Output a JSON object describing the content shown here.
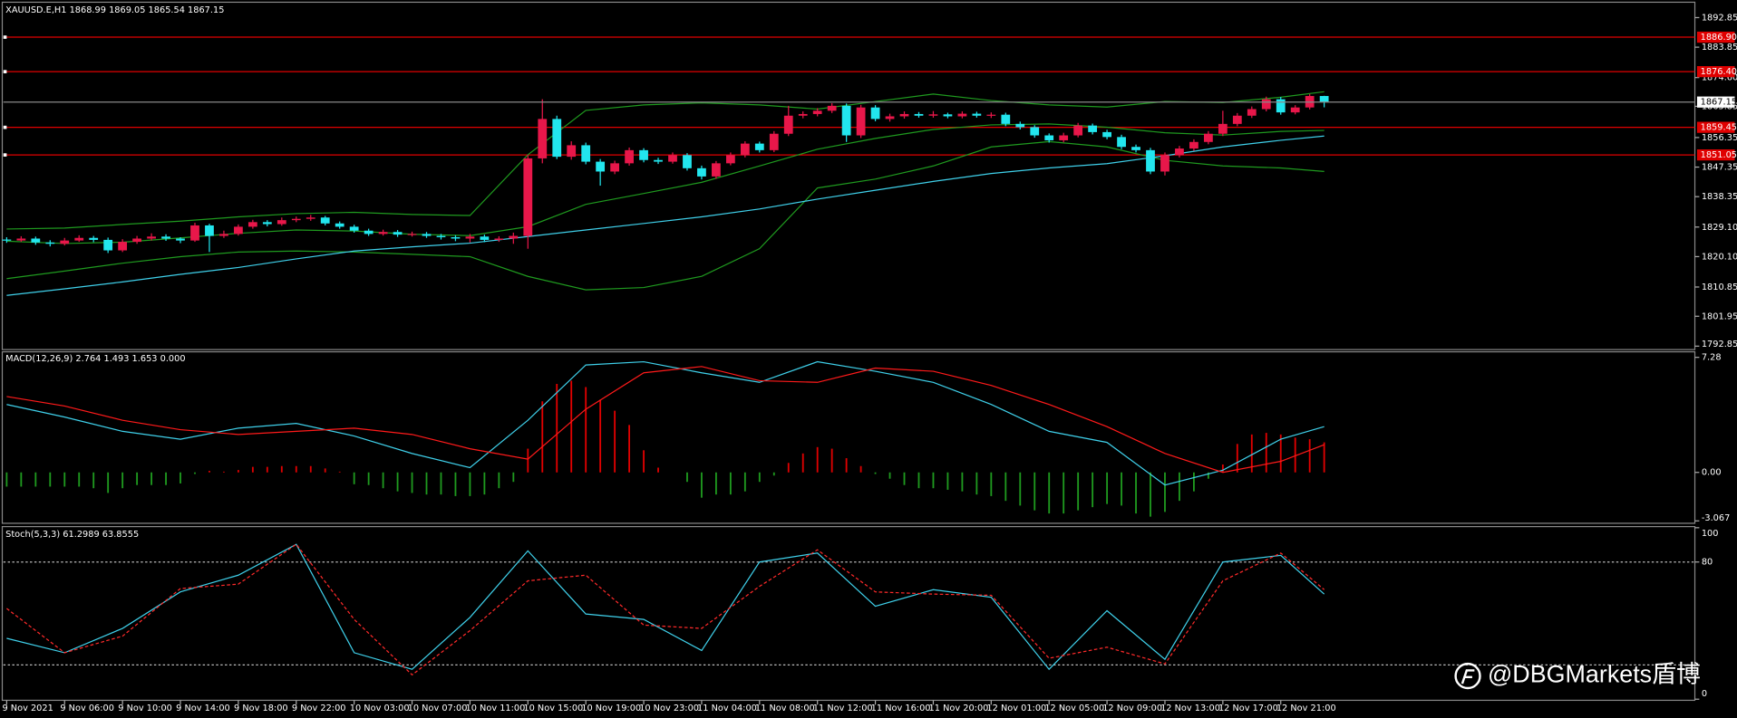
{
  "chart_data": [
    {
      "type": "candlestick",
      "title": "XAUUSD.E,H1  1868.99 1869.05 1865.54 1867.15",
      "categories": [
        "9 Nov 2021",
        null,
        null,
        null,
        "9 Nov 06:00",
        null,
        null,
        null,
        "9 Nov 10:00",
        null,
        null,
        null,
        "9 Nov 14:00",
        null,
        null,
        null,
        "9 Nov 18:00",
        null,
        null,
        null,
        "9 Nov 22:00",
        null,
        null,
        null,
        "10 Nov 03:00",
        null,
        null,
        null,
        "10 Nov 07:00",
        null,
        null,
        null,
        "10 Nov 11:00",
        null,
        null,
        null,
        "10 Nov 15:00",
        null,
        null,
        null,
        "10 Nov 19:00",
        null,
        null,
        null,
        "10 Nov 23:00",
        null,
        null,
        null,
        "11 Nov 04:00",
        null,
        null,
        null,
        "11 Nov 08:00",
        null,
        null,
        null,
        "11 Nov 12:00",
        null,
        null,
        null,
        "11 Nov 16:00",
        null,
        null,
        null,
        "11 Nov 20:00",
        null,
        null,
        null,
        "12 Nov 01:00",
        null,
        null,
        null,
        "12 Nov 05:00",
        null,
        null,
        null,
        "12 Nov 09:00",
        null,
        null,
        null,
        "12 Nov 13:00",
        null,
        null,
        null,
        "12 Nov 17:00",
        null,
        null,
        null,
        "12 Nov 21:00",
        null,
        null,
        null
      ],
      "ohlc": [
        [
          1825.3,
          1826.0,
          1824.3,
          1825.0
        ],
        [
          1825.0,
          1826.3,
          1824.6,
          1825.6
        ],
        [
          1825.6,
          1826.2,
          1823.7,
          1824.4
        ],
        [
          1824.4,
          1825.1,
          1823.2,
          1824.0
        ],
        [
          1824.0,
          1825.8,
          1823.5,
          1825.0
        ],
        [
          1825.0,
          1826.6,
          1824.6,
          1825.8
        ],
        [
          1825.8,
          1826.4,
          1824.5,
          1825.2
        ],
        [
          1825.2,
          1825.9,
          1821.2,
          1822.0
        ],
        [
          1822.0,
          1825.4,
          1821.5,
          1824.6
        ],
        [
          1824.6,
          1826.4,
          1824.0,
          1825.6
        ],
        [
          1825.6,
          1827.2,
          1825.0,
          1826.2
        ],
        [
          1826.2,
          1826.9,
          1824.9,
          1825.6
        ],
        [
          1825.6,
          1826.0,
          1824.2,
          1825.0
        ],
        [
          1825.0,
          1830.4,
          1824.6,
          1829.6
        ],
        [
          1829.6,
          1830.1,
          1821.5,
          1826.4
        ],
        [
          1826.4,
          1828.0,
          1825.8,
          1827.0
        ],
        [
          1827.0,
          1829.9,
          1826.5,
          1829.2
        ],
        [
          1829.2,
          1831.3,
          1828.6,
          1830.6
        ],
        [
          1830.6,
          1831.2,
          1829.3,
          1830.0
        ],
        [
          1830.0,
          1832.0,
          1829.5,
          1831.2
        ],
        [
          1831.2,
          1832.3,
          1830.6,
          1831.6
        ],
        [
          1831.6,
          1832.8,
          1831.0,
          1832.0
        ],
        [
          1832.0,
          1832.5,
          1829.6,
          1830.2
        ],
        [
          1830.2,
          1830.8,
          1828.6,
          1829.2
        ],
        [
          1829.2,
          1829.8,
          1827.4,
          1828.0
        ],
        [
          1828.0,
          1828.6,
          1826.4,
          1827.0
        ],
        [
          1827.0,
          1828.3,
          1826.5,
          1827.6
        ],
        [
          1827.6,
          1828.2,
          1826.1,
          1826.8
        ],
        [
          1826.8,
          1827.7,
          1826.2,
          1827.0
        ],
        [
          1827.0,
          1827.6,
          1825.8,
          1826.4
        ],
        [
          1826.4,
          1827.0,
          1825.3,
          1826.0
        ],
        [
          1826.0,
          1826.6,
          1824.8,
          1825.6
        ],
        [
          1825.6,
          1827.0,
          1824.4,
          1826.2
        ],
        [
          1826.2,
          1826.8,
          1824.5,
          1825.2
        ],
        [
          1825.2,
          1826.3,
          1824.6,
          1825.6
        ],
        [
          1825.6,
          1827.4,
          1824.0,
          1826.4
        ],
        [
          1826.4,
          1851.0,
          1822.5,
          1850.0
        ],
        [
          1850.0,
          1868.0,
          1848.5,
          1862.0
        ],
        [
          1862.0,
          1863.0,
          1849.8,
          1850.5
        ],
        [
          1850.5,
          1855.2,
          1849.6,
          1854.0
        ],
        [
          1854.0,
          1854.8,
          1848.2,
          1849.0
        ],
        [
          1849.0,
          1849.8,
          1841.7,
          1846.0
        ],
        [
          1846.0,
          1849.3,
          1845.2,
          1848.5
        ],
        [
          1848.5,
          1853.3,
          1847.8,
          1852.5
        ],
        [
          1852.5,
          1853.1,
          1848.8,
          1849.5
        ],
        [
          1849.5,
          1850.2,
          1848.3,
          1849.0
        ],
        [
          1849.0,
          1851.8,
          1848.4,
          1851.0
        ],
        [
          1851.0,
          1851.6,
          1846.3,
          1847.0
        ],
        [
          1847.0,
          1847.8,
          1843.6,
          1844.5
        ],
        [
          1844.5,
          1849.2,
          1843.8,
          1848.5
        ],
        [
          1848.5,
          1851.8,
          1847.9,
          1851.0
        ],
        [
          1851.0,
          1855.2,
          1850.3,
          1854.5
        ],
        [
          1854.5,
          1855.1,
          1851.8,
          1852.5
        ],
        [
          1852.5,
          1858.3,
          1851.9,
          1857.5
        ],
        [
          1857.5,
          1866.0,
          1856.8,
          1863.0
        ],
        [
          1863.0,
          1864.3,
          1862.2,
          1863.5
        ],
        [
          1863.5,
          1865.3,
          1862.8,
          1864.5
        ],
        [
          1864.5,
          1866.8,
          1863.8,
          1866.0
        ],
        [
          1866.0,
          1866.7,
          1855.0,
          1857.0
        ],
        [
          1857.0,
          1866.3,
          1856.2,
          1865.5
        ],
        [
          1865.5,
          1866.2,
          1861.3,
          1862.0
        ],
        [
          1862.0,
          1863.6,
          1861.2,
          1862.8
        ],
        [
          1862.8,
          1864.3,
          1862.1,
          1863.5
        ],
        [
          1863.5,
          1864.1,
          1862.4,
          1863.0
        ],
        [
          1863.0,
          1864.4,
          1862.4,
          1863.4
        ],
        [
          1863.4,
          1863.9,
          1862.2,
          1862.8
        ],
        [
          1862.8,
          1864.3,
          1862.2,
          1863.6
        ],
        [
          1863.6,
          1864.2,
          1862.4,
          1863.0
        ],
        [
          1863.0,
          1864.0,
          1862.3,
          1863.3
        ],
        [
          1863.3,
          1863.9,
          1859.8,
          1860.5
        ],
        [
          1860.5,
          1861.2,
          1858.8,
          1859.5
        ],
        [
          1859.5,
          1860.1,
          1856.3,
          1857.0
        ],
        [
          1857.0,
          1857.6,
          1854.8,
          1855.5
        ],
        [
          1855.5,
          1857.8,
          1854.9,
          1857.0
        ],
        [
          1857.0,
          1860.8,
          1856.4,
          1860.0
        ],
        [
          1860.0,
          1860.6,
          1857.3,
          1858.0
        ],
        [
          1858.0,
          1858.7,
          1855.8,
          1856.5
        ],
        [
          1856.5,
          1857.2,
          1852.8,
          1853.5
        ],
        [
          1853.5,
          1854.2,
          1851.8,
          1852.5
        ],
        [
          1852.5,
          1853.2,
          1845.2,
          1846.0
        ],
        [
          1846.0,
          1851.8,
          1844.8,
          1851.0
        ],
        [
          1851.0,
          1853.8,
          1850.3,
          1853.0
        ],
        [
          1853.0,
          1855.8,
          1852.3,
          1855.0
        ],
        [
          1855.0,
          1858.3,
          1854.3,
          1857.5
        ],
        [
          1857.5,
          1864.5,
          1856.8,
          1860.5
        ],
        [
          1860.5,
          1863.8,
          1859.8,
          1863.0
        ],
        [
          1863.0,
          1865.8,
          1862.3,
          1865.0
        ],
        [
          1865.0,
          1868.8,
          1864.3,
          1868.0
        ],
        [
          1868.0,
          1868.7,
          1863.3,
          1864.0
        ],
        [
          1864.0,
          1866.2,
          1863.4,
          1865.5
        ],
        [
          1865.5,
          1869.6,
          1864.9,
          1868.99
        ],
        [
          1868.99,
          1869.05,
          1865.54,
          1867.15
        ]
      ],
      "up_color": "#e8174a",
      "down_color": "#22e6ee",
      "ylim": [
        1791.8,
        1897.2
      ],
      "yticks": [
        1892.85,
        1883.85,
        {
          "value": 1874.6,
          "label": "1874.60"
        },
        1865.85,
        1856.35,
        1847.35,
        1838.35,
        {
          "value": 1829.1,
          "label": "1829.10"
        },
        {
          "value": 1820.1,
          "label": "1820.10"
        },
        1810.85,
        1801.95,
        1792.85
      ],
      "levels": [
        {
          "value": 1886.9,
          "label": "1886.90"
        },
        {
          "value": 1876.4,
          "label": "1876.40"
        },
        {
          "value": 1859.45,
          "label": "1859.45"
        },
        {
          "value": 1851.05,
          "label": "1851.05"
        }
      ],
      "level_color": "#e00000",
      "price_line": 1867.15,
      "x": [
        0,
        4,
        8,
        12,
        16,
        20,
        24,
        28,
        32,
        36,
        40,
        44,
        48,
        52,
        56,
        60,
        64,
        68,
        72,
        76,
        80,
        84,
        88,
        91
      ],
      "lines": [
        {
          "color": "#1f9a1f",
          "values": [
            1828.5,
            1828.8,
            1829.9,
            1830.9,
            1832.2,
            1833.2,
            1833.6,
            1832.9,
            1832.6,
            1851.1,
            1864.6,
            1866.3,
            1866.9,
            1866.3,
            1865.0,
            1867.3,
            1869.6,
            1867.6,
            1866.3,
            1865.6,
            1867.3,
            1867.0,
            1868.6,
            1870.3
          ]
        },
        {
          "color": "#1f9a1f",
          "values": [
            1824.8,
            1824.1,
            1824.5,
            1825.8,
            1827.2,
            1828.2,
            1827.9,
            1826.9,
            1826.5,
            1829.2,
            1836.0,
            1839.3,
            1842.7,
            1847.7,
            1852.8,
            1856.1,
            1858.8,
            1860.2,
            1860.5,
            1859.5,
            1857.8,
            1857.1,
            1858.2,
            1858.5
          ]
        },
        {
          "color": "#1f9a1f",
          "values": [
            1813.4,
            1815.7,
            1818.1,
            1820.1,
            1821.5,
            1821.8,
            1821.5,
            1820.8,
            1820.1,
            1814.1,
            1810.0,
            1810.7,
            1814.1,
            1822.5,
            1841.0,
            1843.7,
            1847.7,
            1853.5,
            1855.1,
            1853.5,
            1849.4,
            1847.7,
            1847.1,
            1846.0
          ]
        },
        {
          "color": "#3fd0ea",
          "values": [
            1808.3,
            1810.3,
            1812.4,
            1814.7,
            1816.8,
            1819.4,
            1821.8,
            1823.1,
            1824.2,
            1826.2,
            1828.2,
            1830.2,
            1832.2,
            1834.6,
            1837.6,
            1840.3,
            1843.0,
            1845.4,
            1847.1,
            1848.4,
            1850.8,
            1853.5,
            1855.5,
            1856.8
          ]
        }
      ]
    },
    {
      "type": "macd",
      "title": "MACD(12,26,9) 2.764 1.493 1.653 0.000",
      "ylim": [
        -3.22,
        7.63
      ],
      "yticks": [
        7.28,
        {
          "value": 0,
          "label": "0.00"
        },
        -3.067
      ],
      "pos_color": "#e00000",
      "neg_color": "#1f9a1f",
      "histogram": [
        -0.9,
        -0.9,
        -0.9,
        -0.9,
        -0.9,
        -0.9,
        -1.0,
        -1.3,
        -1.0,
        -0.8,
        -0.8,
        -0.8,
        -0.7,
        -0.1,
        0.1,
        0.05,
        0.15,
        0.35,
        0.35,
        0.4,
        0.4,
        0.4,
        0.25,
        0.05,
        -0.75,
        -0.8,
        -1.0,
        -1.2,
        -1.3,
        -1.4,
        -1.4,
        -1.5,
        -1.5,
        -1.4,
        -1.0,
        -0.6,
        1.5,
        4.5,
        5.6,
        5.8,
        5.4,
        4.6,
        3.9,
        3.0,
        1.4,
        0.3,
        0,
        -0.6,
        -1.6,
        -1.4,
        -1.4,
        -1.2,
        -0.6,
        -0.2,
        0.6,
        1.2,
        1.6,
        1.5,
        0.9,
        0.4,
        -0.1,
        -0.4,
        -0.8,
        -1.0,
        -1.0,
        -1.1,
        -1.2,
        -1.4,
        -1.5,
        -1.8,
        -2.1,
        -2.4,
        -2.6,
        -2.6,
        -2.4,
        -2.2,
        -2.0,
        -2.1,
        -2.6,
        -2.8,
        -2.5,
        -1.8,
        -1.2,
        -0.4,
        0.5,
        1.8,
        2.4,
        2.5,
        2.4,
        2.2,
        2.1,
        1.9
      ],
      "x": [
        0,
        4,
        8,
        12,
        16,
        20,
        24,
        28,
        32,
        36,
        40,
        44,
        48,
        52,
        56,
        60,
        64,
        68,
        72,
        76,
        80,
        84,
        88,
        91
      ],
      "lines": [
        {
          "color": "#3fd0ea",
          "values": [
            4.3,
            3.5,
            2.6,
            2.1,
            2.8,
            3.1,
            2.3,
            1.2,
            0.3,
            3.3,
            6.8,
            7.0,
            6.3,
            5.7,
            7.0,
            6.4,
            5.7,
            4.3,
            2.6,
            1.9,
            -0.8,
            0.14,
            2.1,
            2.9
          ]
        },
        {
          "color": "#ff1a1a",
          "values": [
            4.8,
            4.2,
            3.3,
            2.7,
            2.4,
            2.6,
            2.8,
            2.4,
            1.5,
            0.84,
            4.0,
            6.3,
            6.7,
            5.8,
            5.7,
            6.6,
            6.4,
            5.5,
            4.3,
            2.9,
            1.2,
            0,
            0.7,
            1.75
          ]
        }
      ]
    },
    {
      "type": "stochastic",
      "title": "Stoch(5,3,3) 61.2989 63.8555",
      "ylim": [
        0,
        100
      ],
      "yticks": [
        100,
        80,
        0
      ],
      "levels": [
        80,
        20
      ],
      "x": [
        0,
        4,
        8,
        12,
        16,
        20,
        24,
        28,
        32,
        36,
        40,
        44,
        48,
        52,
        56,
        60,
        64,
        68,
        72,
        76,
        80,
        84,
        88,
        91
      ],
      "lines": [
        {
          "color": "#3fd0ea",
          "dashed": false,
          "values": [
            35.5,
            27.1,
            41.3,
            62.6,
            72.3,
            90.3,
            27.1,
            17.4,
            47.7,
            86.5,
            49.7,
            46.5,
            28.4,
            80,
            85.2,
            54.2,
            63.9,
            59.4,
            17.4,
            51.6,
            23.2,
            80,
            83.9,
            61.3
          ]
        },
        {
          "color": "#ff2a2a",
          "dashed": true,
          "values": [
            52.9,
            27.1,
            36.8,
            64.5,
            67.1,
            90.3,
            46.5,
            14.2,
            40,
            69,
            72.3,
            43.2,
            41.3,
            65.8,
            87.1,
            62.6,
            61.3,
            60.6,
            23.9,
            30.3,
            20.6,
            69,
            85.2,
            63.9
          ]
        }
      ]
    }
  ],
  "watermark": "@DBGMarkets盾博"
}
